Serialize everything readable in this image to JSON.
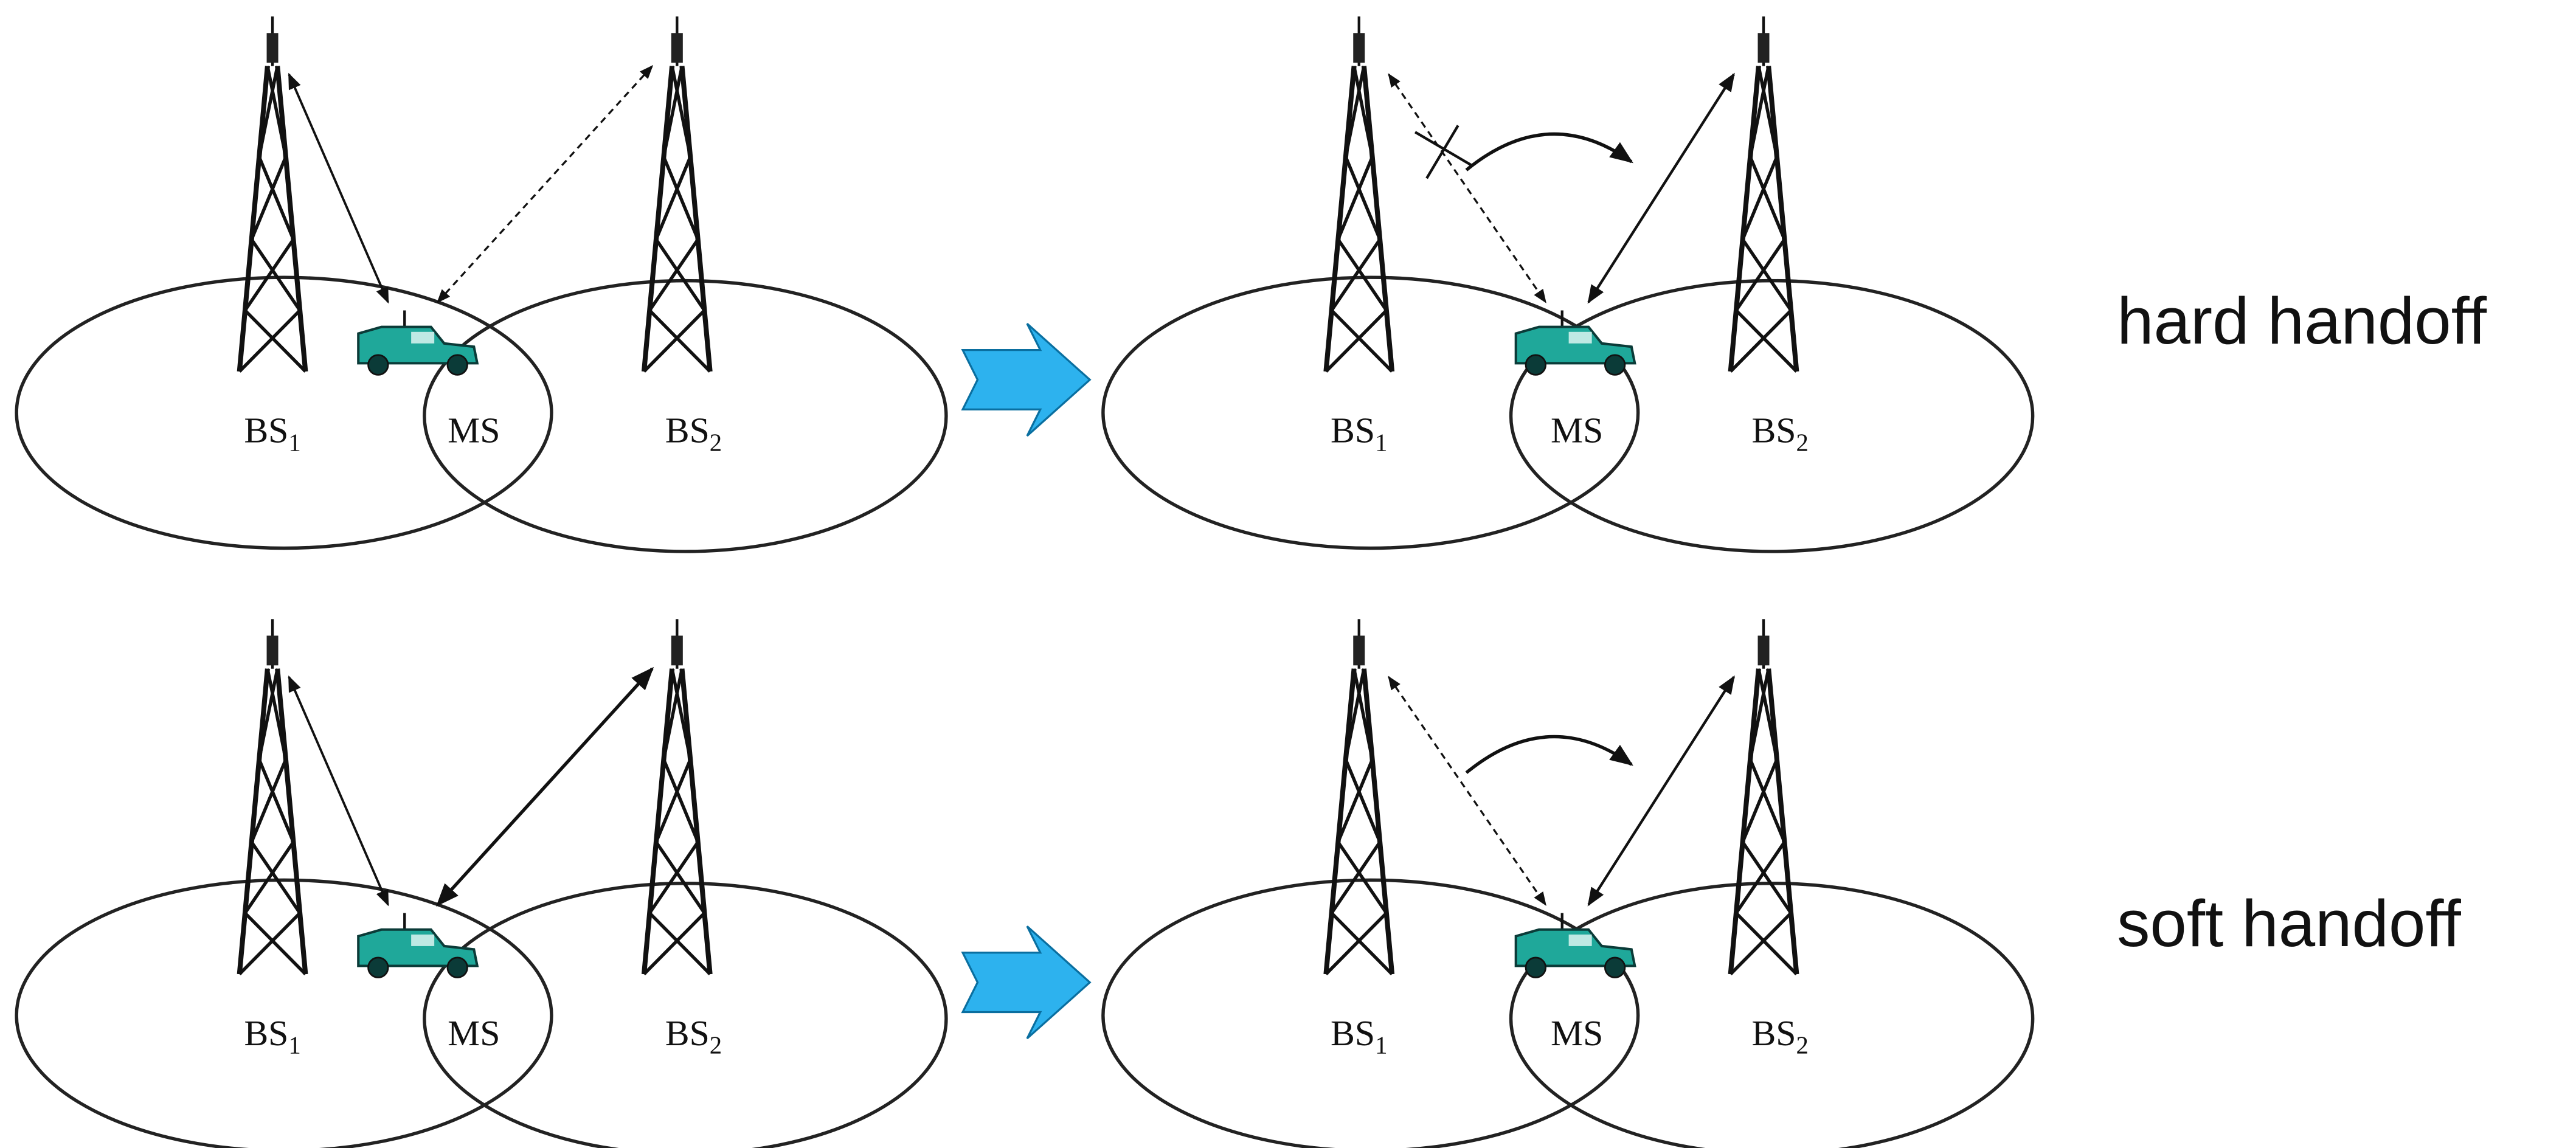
{
  "rows": [
    {
      "label": "hard handoff",
      "panels": [
        {
          "labels": [
            {
              "text": "BS",
              "sub": "1"
            },
            {
              "text": "MS"
            },
            {
              "text": "BS",
              "sub": "2"
            }
          ]
        },
        {
          "labels": [
            {
              "text": "BS",
              "sub": "1"
            },
            {
              "text": "MS"
            },
            {
              "text": "BS",
              "sub": "2"
            }
          ]
        }
      ]
    },
    {
      "label": "soft handoff",
      "panels": [
        {
          "labels": [
            {
              "text": "BS",
              "sub": "1"
            },
            {
              "text": "MS"
            },
            {
              "text": "BS",
              "sub": "2"
            }
          ]
        },
        {
          "labels": [
            {
              "text": "BS",
              "sub": "1"
            },
            {
              "text": "MS"
            },
            {
              "text": "BS",
              "sub": "2"
            }
          ]
        }
      ]
    }
  ]
}
